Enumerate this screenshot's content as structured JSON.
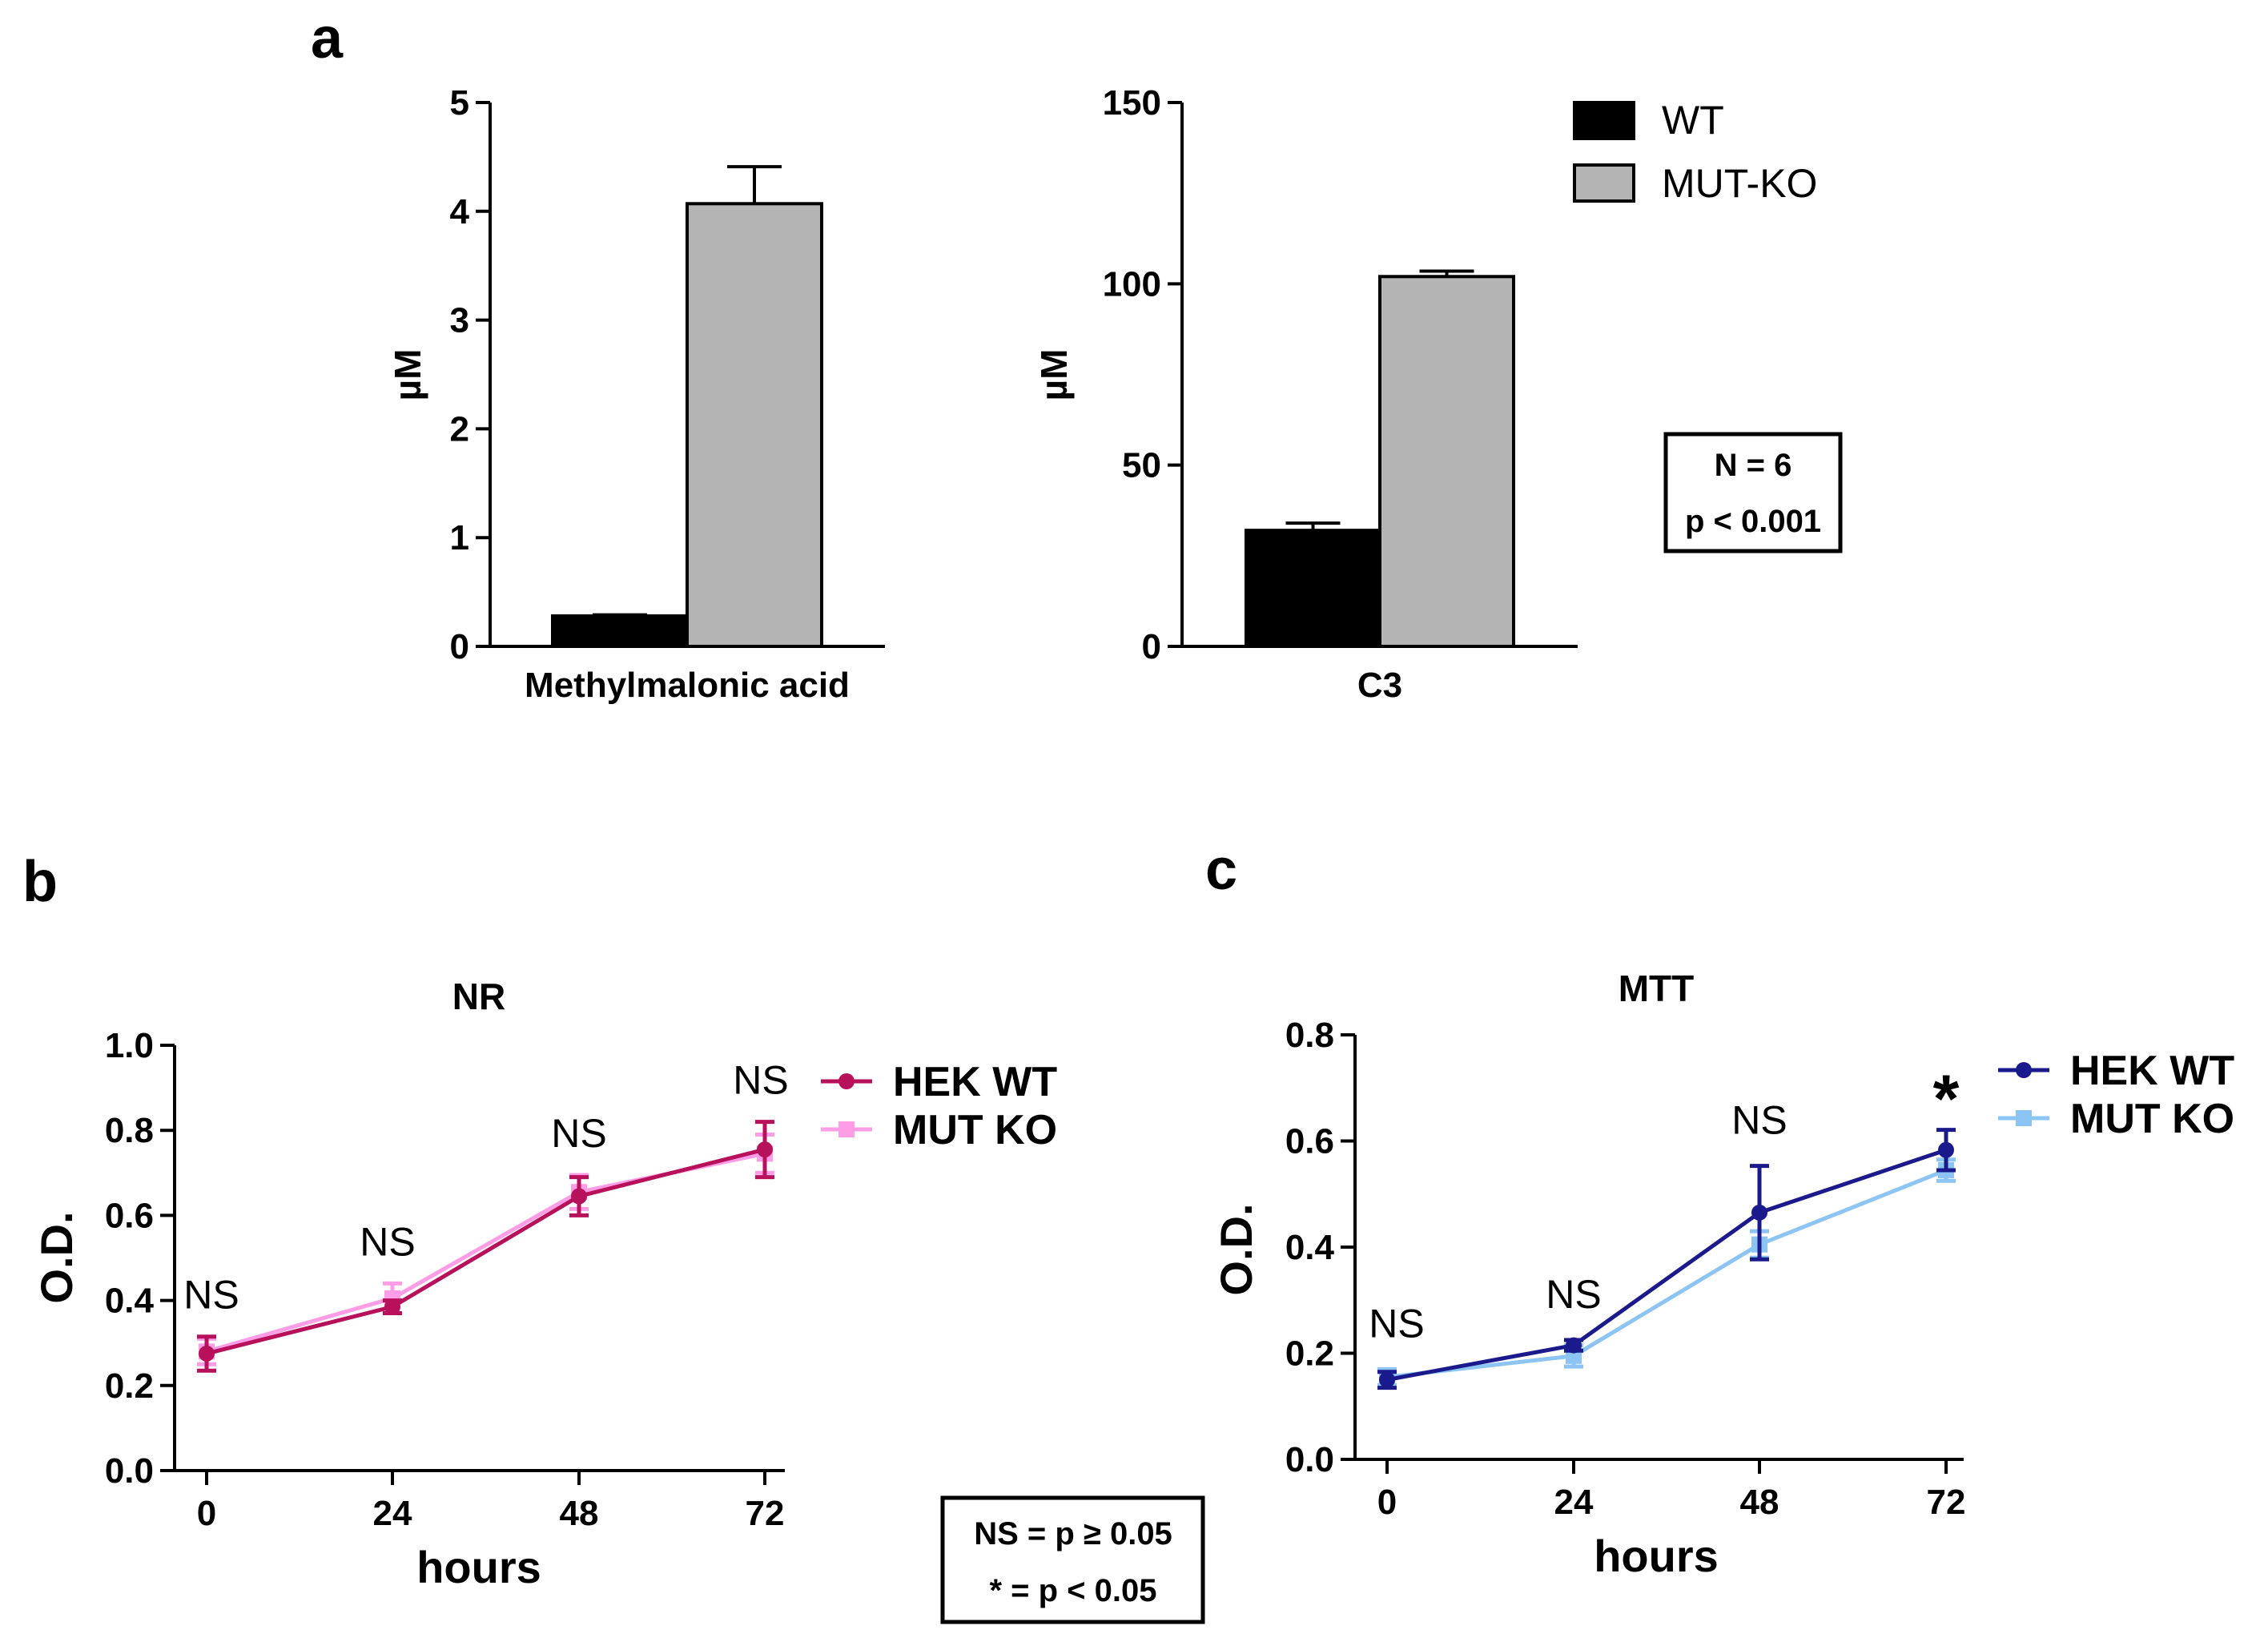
{
  "panel_labels": {
    "a": "a",
    "b": "b",
    "c": "c"
  },
  "colors": {
    "wt_bar": "#000000",
    "mutko_bar": "#b4b4b4",
    "nr_hek_wt": "#b8115c",
    "nr_mut_ko": "#ff9ee6",
    "mtt_hek_wt": "#1a1a8c",
    "mtt_mut_ko": "#8cc4f4"
  },
  "legend_a": {
    "wt": "WT",
    "mutko": "MUT-KO"
  },
  "stats_box_a": {
    "line1": "N = 6",
    "line2": "p < 0.001"
  },
  "stats_box_bc": {
    "line1": "NS = p ≥ 0.05",
    "line2": "* = p < 0.05"
  },
  "chart_data": [
    {
      "id": "a1",
      "type": "bar",
      "title": "",
      "categories": [
        "Methylmalonic acid"
      ],
      "xlabel": "Methylmalonic acid",
      "ylabel": "µM",
      "ylim": [
        0,
        5
      ],
      "yticks": [
        0,
        1,
        2,
        3,
        4,
        5
      ],
      "yticklabels": [
        "0",
        "1",
        "2",
        "3",
        "4",
        "5"
      ],
      "series": [
        {
          "name": "WT",
          "values": [
            0.28
          ],
          "errors": [
            0.01
          ]
        },
        {
          "name": "MUT-KO",
          "values": [
            4.07
          ],
          "errors": [
            0.34
          ]
        }
      ]
    },
    {
      "id": "a2",
      "type": "bar",
      "title": "",
      "categories": [
        "C3"
      ],
      "xlabel": "C3",
      "ylabel": "µM",
      "ylim": [
        0,
        150
      ],
      "yticks": [
        0,
        50,
        100,
        150
      ],
      "yticklabels": [
        "0",
        "50",
        "100",
        "150"
      ],
      "series": [
        {
          "name": "WT",
          "values": [
            32
          ],
          "errors": [
            2
          ]
        },
        {
          "name": "MUT-KO",
          "values": [
            102
          ],
          "errors": [
            1.5
          ]
        }
      ]
    },
    {
      "id": "b",
      "type": "line",
      "title": "NR",
      "xlabel": "hours",
      "ylabel": "O.D.",
      "x": [
        0,
        24,
        48,
        72
      ],
      "xticklabels": [
        "0",
        "24",
        "48",
        "72"
      ],
      "ylim": [
        0,
        1.0
      ],
      "yticks": [
        0,
        0.2,
        0.4,
        0.6,
        0.8,
        1.0
      ],
      "yticklabels": [
        "0.0",
        "0.2",
        "0.4",
        "0.6",
        "0.8",
        "1.0"
      ],
      "series": [
        {
          "name": "HEK WT",
          "values": [
            0.275,
            0.385,
            0.645,
            0.755
          ],
          "errors": [
            0.04,
            0.015,
            0.045,
            0.065
          ]
        },
        {
          "name": "MUT KO",
          "values": [
            0.28,
            0.405,
            0.655,
            0.745
          ],
          "errors": [
            0.03,
            0.035,
            0.04,
            0.045
          ]
        }
      ],
      "annotations": [
        "NS",
        "NS",
        "NS",
        "NS"
      ]
    },
    {
      "id": "c",
      "type": "line",
      "title": "MTT",
      "xlabel": "hours",
      "ylabel": "O.D.",
      "x": [
        0,
        24,
        48,
        72
      ],
      "xticklabels": [
        "0",
        "24",
        "48",
        "72"
      ],
      "ylim": [
        0,
        0.8
      ],
      "yticks": [
        0,
        0.2,
        0.4,
        0.6,
        0.8
      ],
      "yticklabels": [
        "0.0",
        "0.2",
        "0.4",
        "0.6",
        "0.8"
      ],
      "series": [
        {
          "name": "HEK WT",
          "values": [
            0.15,
            0.215,
            0.465,
            0.583
          ],
          "errors": [
            0.015,
            0.01,
            0.088,
            0.038
          ]
        },
        {
          "name": "MUT KO",
          "values": [
            0.155,
            0.195,
            0.405,
            0.545
          ],
          "errors": [
            0.015,
            0.02,
            0.025,
            0.02
          ]
        }
      ],
      "annotations": [
        "NS",
        "NS",
        "NS",
        "*"
      ]
    }
  ]
}
